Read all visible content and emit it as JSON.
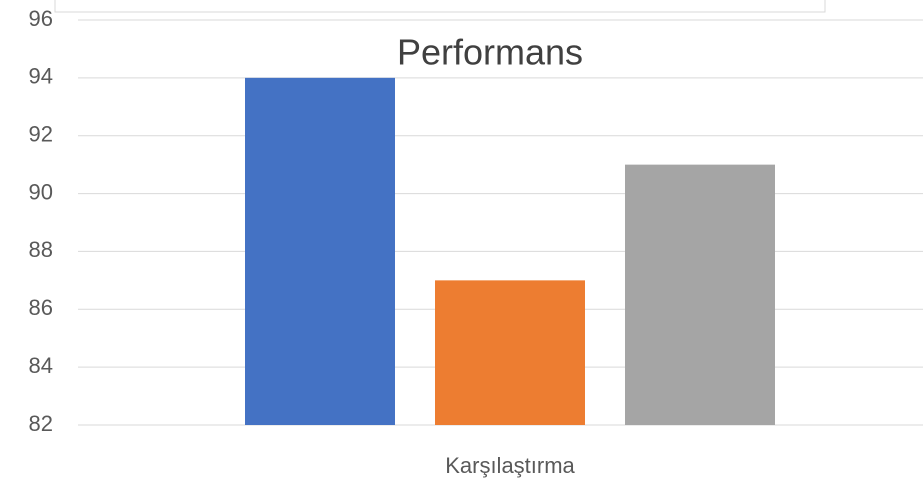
{
  "chart_data": {
    "type": "bar",
    "title": "Performans",
    "categories": [
      "Karşılaştırma"
    ],
    "series": [
      {
        "color": "#4472c4",
        "values": [
          94
        ]
      },
      {
        "color": "#ed7d31",
        "values": [
          87
        ]
      },
      {
        "color": "#a5a5a5",
        "values": [
          91
        ]
      }
    ],
    "ylim": [
      82,
      96
    ],
    "yticks": [
      82,
      84,
      86,
      88,
      90,
      92,
      94,
      96
    ],
    "grid": true
  }
}
